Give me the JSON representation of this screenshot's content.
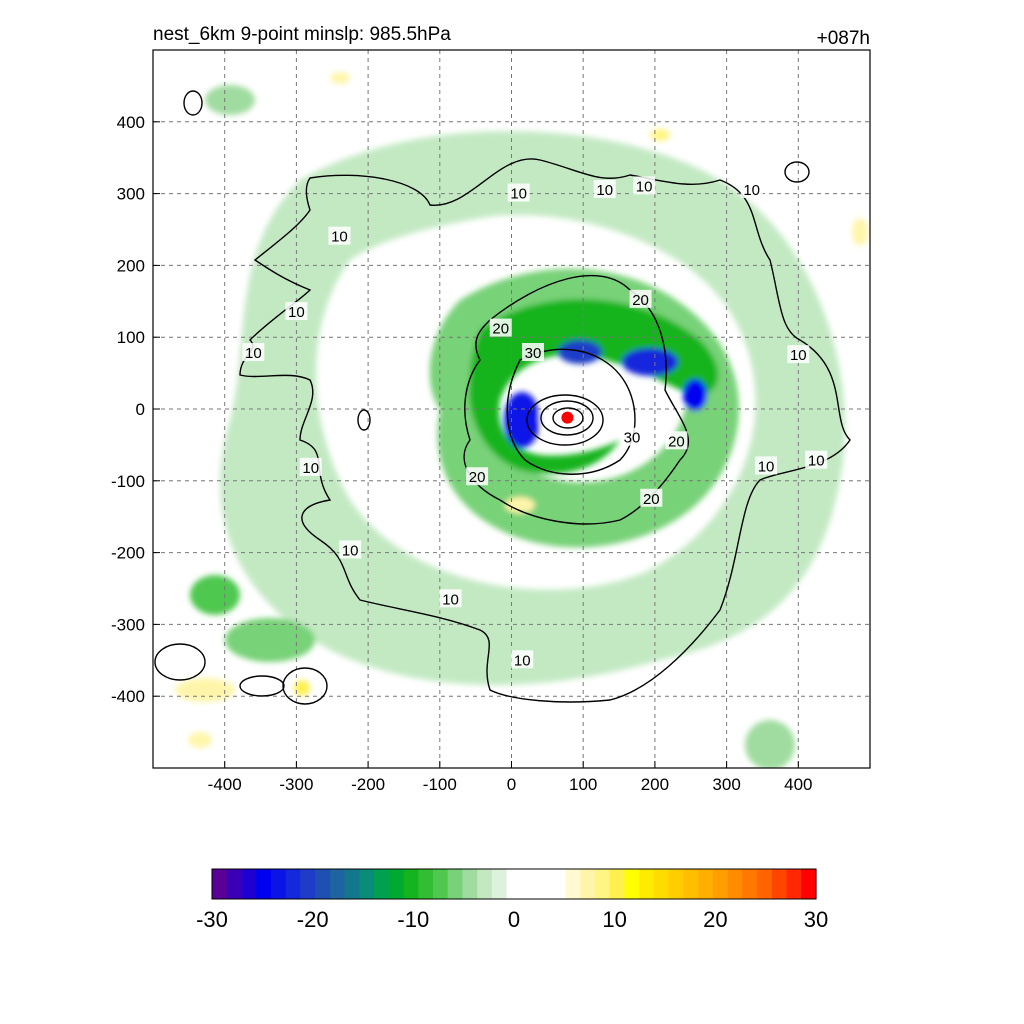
{
  "header": {
    "left_title": "nest_6km  9-point minslp: 985.5hPa",
    "right_title": "+087h"
  },
  "chart_data": {
    "type": "heatmap",
    "title": "nest_6km  9-point minslp: 985.5hPa",
    "forecast_hour": "+087h",
    "xlabel": "",
    "ylabel": "",
    "xlim": [
      -500,
      500
    ],
    "ylim": [
      -500,
      500
    ],
    "x_ticks": [
      -400,
      -300,
      -200,
      -100,
      0,
      100,
      200,
      300,
      400
    ],
    "y_ticks": [
      400,
      300,
      200,
      100,
      0,
      -100,
      -200,
      -300,
      -400
    ],
    "grid": true,
    "center_marker": {
      "x": 78,
      "y": -12,
      "color": "#ff0000"
    },
    "contour_levels": [
      10,
      20,
      30
    ],
    "contour_labels": [
      {
        "text": "10",
        "x": -240,
        "y": 240
      },
      {
        "text": "10",
        "x": 10,
        "y": 300
      },
      {
        "text": "10",
        "x": 130,
        "y": 305
      },
      {
        "text": "10",
        "x": 185,
        "y": 310
      },
      {
        "text": "10",
        "x": 335,
        "y": 305
      },
      {
        "text": "10",
        "x": -300,
        "y": 135
      },
      {
        "text": "10",
        "x": -360,
        "y": 78
      },
      {
        "text": "10",
        "x": 400,
        "y": 75
      },
      {
        "text": "10",
        "x": 355,
        "y": -80
      },
      {
        "text": "10",
        "x": 425,
        "y": -72
      },
      {
        "text": "10",
        "x": -280,
        "y": -82
      },
      {
        "text": "10",
        "x": -225,
        "y": -197
      },
      {
        "text": "10",
        "x": -85,
        "y": -265
      },
      {
        "text": "10",
        "x": 15,
        "y": -350
      },
      {
        "text": "20",
        "x": -15,
        "y": 112
      },
      {
        "text": "20",
        "x": 180,
        "y": 152
      },
      {
        "text": "20",
        "x": 230,
        "y": -45
      },
      {
        "text": "20",
        "x": 195,
        "y": -125
      },
      {
        "text": "20",
        "x": -48,
        "y": -95
      },
      {
        "text": "30",
        "x": 30,
        "y": 78
      },
      {
        "text": "30",
        "x": 168,
        "y": -40
      }
    ],
    "colorbar": {
      "ticks": [
        "-30",
        "-20",
        "-10",
        "0",
        "10",
        "20",
        "30"
      ],
      "min": -30,
      "max": 30,
      "colors": [
        "#5a0096",
        "#3c00b4",
        "#1e00d2",
        "#0000f0",
        "#0a14e6",
        "#1428dc",
        "#1e3cc8",
        "#1e50b4",
        "#1e64a0",
        "#14788c",
        "#0a8c78",
        "#00a050",
        "#00aa32",
        "#14b41e",
        "#32be32",
        "#50c850",
        "#78d278",
        "#a0dca0",
        "#c3e9c3",
        "#dcf2dc",
        "#ffffff",
        "#ffffff",
        "#ffffff",
        "#ffffff",
        "#fffad2",
        "#fff5aa",
        "#fff582",
        "#fff050",
        "#ffff00",
        "#ffeb00",
        "#ffdc00",
        "#ffcd00",
        "#ffbe00",
        "#ffaf00",
        "#ffa000",
        "#ff8c00",
        "#ff7800",
        "#ff6400",
        "#ff4600",
        "#ff2800",
        "#ff0000"
      ]
    }
  }
}
